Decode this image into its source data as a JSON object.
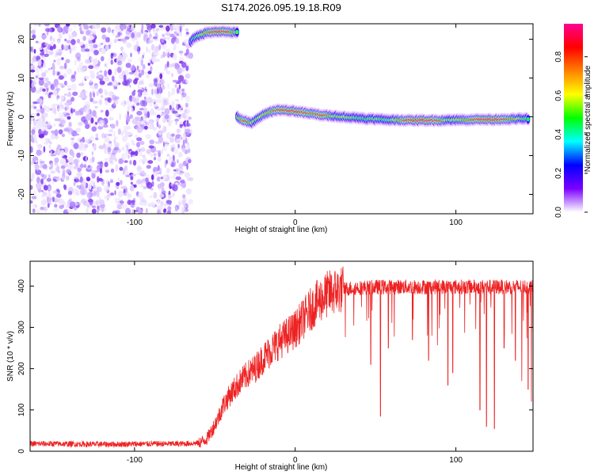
{
  "title": "S174.2026.095.19.18.R09",
  "chart_data": [
    {
      "type": "heatmap",
      "title": "S174.2026.095.19.18.R09",
      "xlabel": "Height of straight line (km)",
      "ylabel": "Frequency (Hz)",
      "xlim": [
        -165,
        148
      ],
      "ylim": [
        -25,
        24
      ],
      "xticks": [
        -100,
        0,
        100
      ],
      "yticks": [
        20,
        10,
        0,
        -10,
        -20
      ],
      "noise_region": {
        "x_range": [
          -165,
          -65
        ],
        "y_range": [
          -25,
          24
        ],
        "amplitude_range": [
          0.05,
          0.2
        ]
      },
      "ridges": [
        {
          "name": "upper ridge",
          "x": [
            -65,
            -62,
            -58,
            -54,
            -50,
            -46,
            -42,
            -38,
            -36
          ],
          "y": [
            19.5,
            20.5,
            21.3,
            21.8,
            22.0,
            22.0,
            21.9,
            21.8,
            21.7
          ],
          "amplitude": [
            0.35,
            0.5,
            0.6,
            0.75,
            0.92,
            0.92,
            0.85,
            0.7,
            0.5
          ]
        },
        {
          "name": "main ridge",
          "x": [
            -36,
            -33,
            -30,
            -27,
            -25,
            -22,
            -19,
            -16,
            -13,
            -10,
            -7,
            -4,
            -1,
            2,
            5,
            8,
            11,
            14,
            17,
            20,
            25,
            30,
            35,
            40,
            45,
            50,
            55,
            60,
            65,
            70,
            75,
            80,
            85,
            90,
            95,
            100,
            105,
            110,
            115,
            120,
            125,
            130,
            135,
            140,
            145
          ],
          "y": [
            0.0,
            -0.8,
            -1.3,
            -1.6,
            -1.0,
            0.0,
            0.6,
            1.2,
            1.6,
            1.8,
            1.7,
            1.6,
            1.5,
            1.3,
            1.1,
            0.9,
            0.8,
            0.6,
            0.4,
            0.3,
            0.2,
            0.0,
            -0.2,
            -0.3,
            -0.5,
            -0.6,
            -0.7,
            -0.8,
            -0.8,
            -0.9,
            -0.9,
            -0.9,
            -0.9,
            -0.9,
            -0.8,
            -0.8,
            -0.8,
            -0.7,
            -0.7,
            -0.7,
            -0.7,
            -0.6,
            -0.6,
            -0.5,
            -0.5
          ],
          "amplitude": [
            0.5,
            0.8,
            0.85,
            0.6,
            0.55,
            0.6,
            0.65,
            0.7,
            0.8,
            0.85,
            0.9,
            0.92,
            0.93,
            0.9,
            0.85,
            0.8,
            0.75,
            0.85,
            0.9,
            0.75,
            0.55,
            0.6,
            0.55,
            0.5,
            0.5,
            0.55,
            0.5,
            0.55,
            0.7,
            0.9,
            0.95,
            0.95,
            0.9,
            0.8,
            0.55,
            0.6,
            0.7,
            0.8,
            0.92,
            0.95,
            0.95,
            0.85,
            0.7,
            0.55,
            0.5
          ]
        }
      ],
      "colorbar": {
        "label": "Normalized spectral amplitude",
        "range": [
          0,
          0.97
        ],
        "ticks": [
          0.0,
          0.2,
          0.4,
          0.6,
          0.8
        ],
        "colors": [
          "#ffffff",
          "#7b00ff",
          "#0000ff",
          "#00ffff",
          "#00ff00",
          "#ffff00",
          "#ff8000",
          "#ff0000",
          "#ff0090"
        ]
      }
    },
    {
      "type": "line",
      "xlabel": "Height of straight line (km)",
      "ylabel": "SNR (10 * v/v)",
      "xlim": [
        -165,
        148
      ],
      "ylim": [
        0,
        460
      ],
      "xticks": [
        -100,
        0,
        100
      ],
      "yticks": [
        0,
        100,
        200,
        300,
        400
      ],
      "series": [
        {
          "name": "SNR",
          "color": "#ee2222",
          "x": [
            -165,
            -150,
            -130,
            -110,
            -90,
            -70,
            -60,
            -55,
            -52,
            -48,
            -45,
            -40,
            -35,
            -30,
            -25,
            -20,
            -15,
            -10,
            -5,
            0,
            5,
            10,
            15,
            20,
            25,
            30,
            35,
            40,
            50,
            60,
            70,
            80,
            90,
            100,
            110,
            120,
            130,
            140,
            148
          ],
          "values": [
            18,
            18,
            17,
            17,
            18,
            18,
            20,
            30,
            50,
            80,
            110,
            140,
            165,
            185,
            200,
            225,
            245,
            265,
            280,
            295,
            320,
            345,
            365,
            380,
            388,
            392,
            395,
            396,
            397,
            398,
            398,
            398,
            398,
            398,
            398,
            398,
            398,
            398,
            398
          ],
          "dips": [
            {
              "x": 47,
              "value": 210
            },
            {
              "x": 53,
              "value": 85
            },
            {
              "x": 58,
              "value": 250
            },
            {
              "x": 73,
              "value": 270
            },
            {
              "x": 83,
              "value": 220
            },
            {
              "x": 95,
              "value": 160
            },
            {
              "x": 98,
              "value": 190
            },
            {
              "x": 115,
              "value": 100
            },
            {
              "x": 119,
              "value": 60
            },
            {
              "x": 124,
              "value": 55
            },
            {
              "x": 130,
              "value": 250
            },
            {
              "x": 137,
              "value": 220
            },
            {
              "x": 141,
              "value": 170
            },
            {
              "x": 145,
              "value": 150
            },
            {
              "x": 147,
              "value": 120
            }
          ]
        }
      ]
    }
  ]
}
